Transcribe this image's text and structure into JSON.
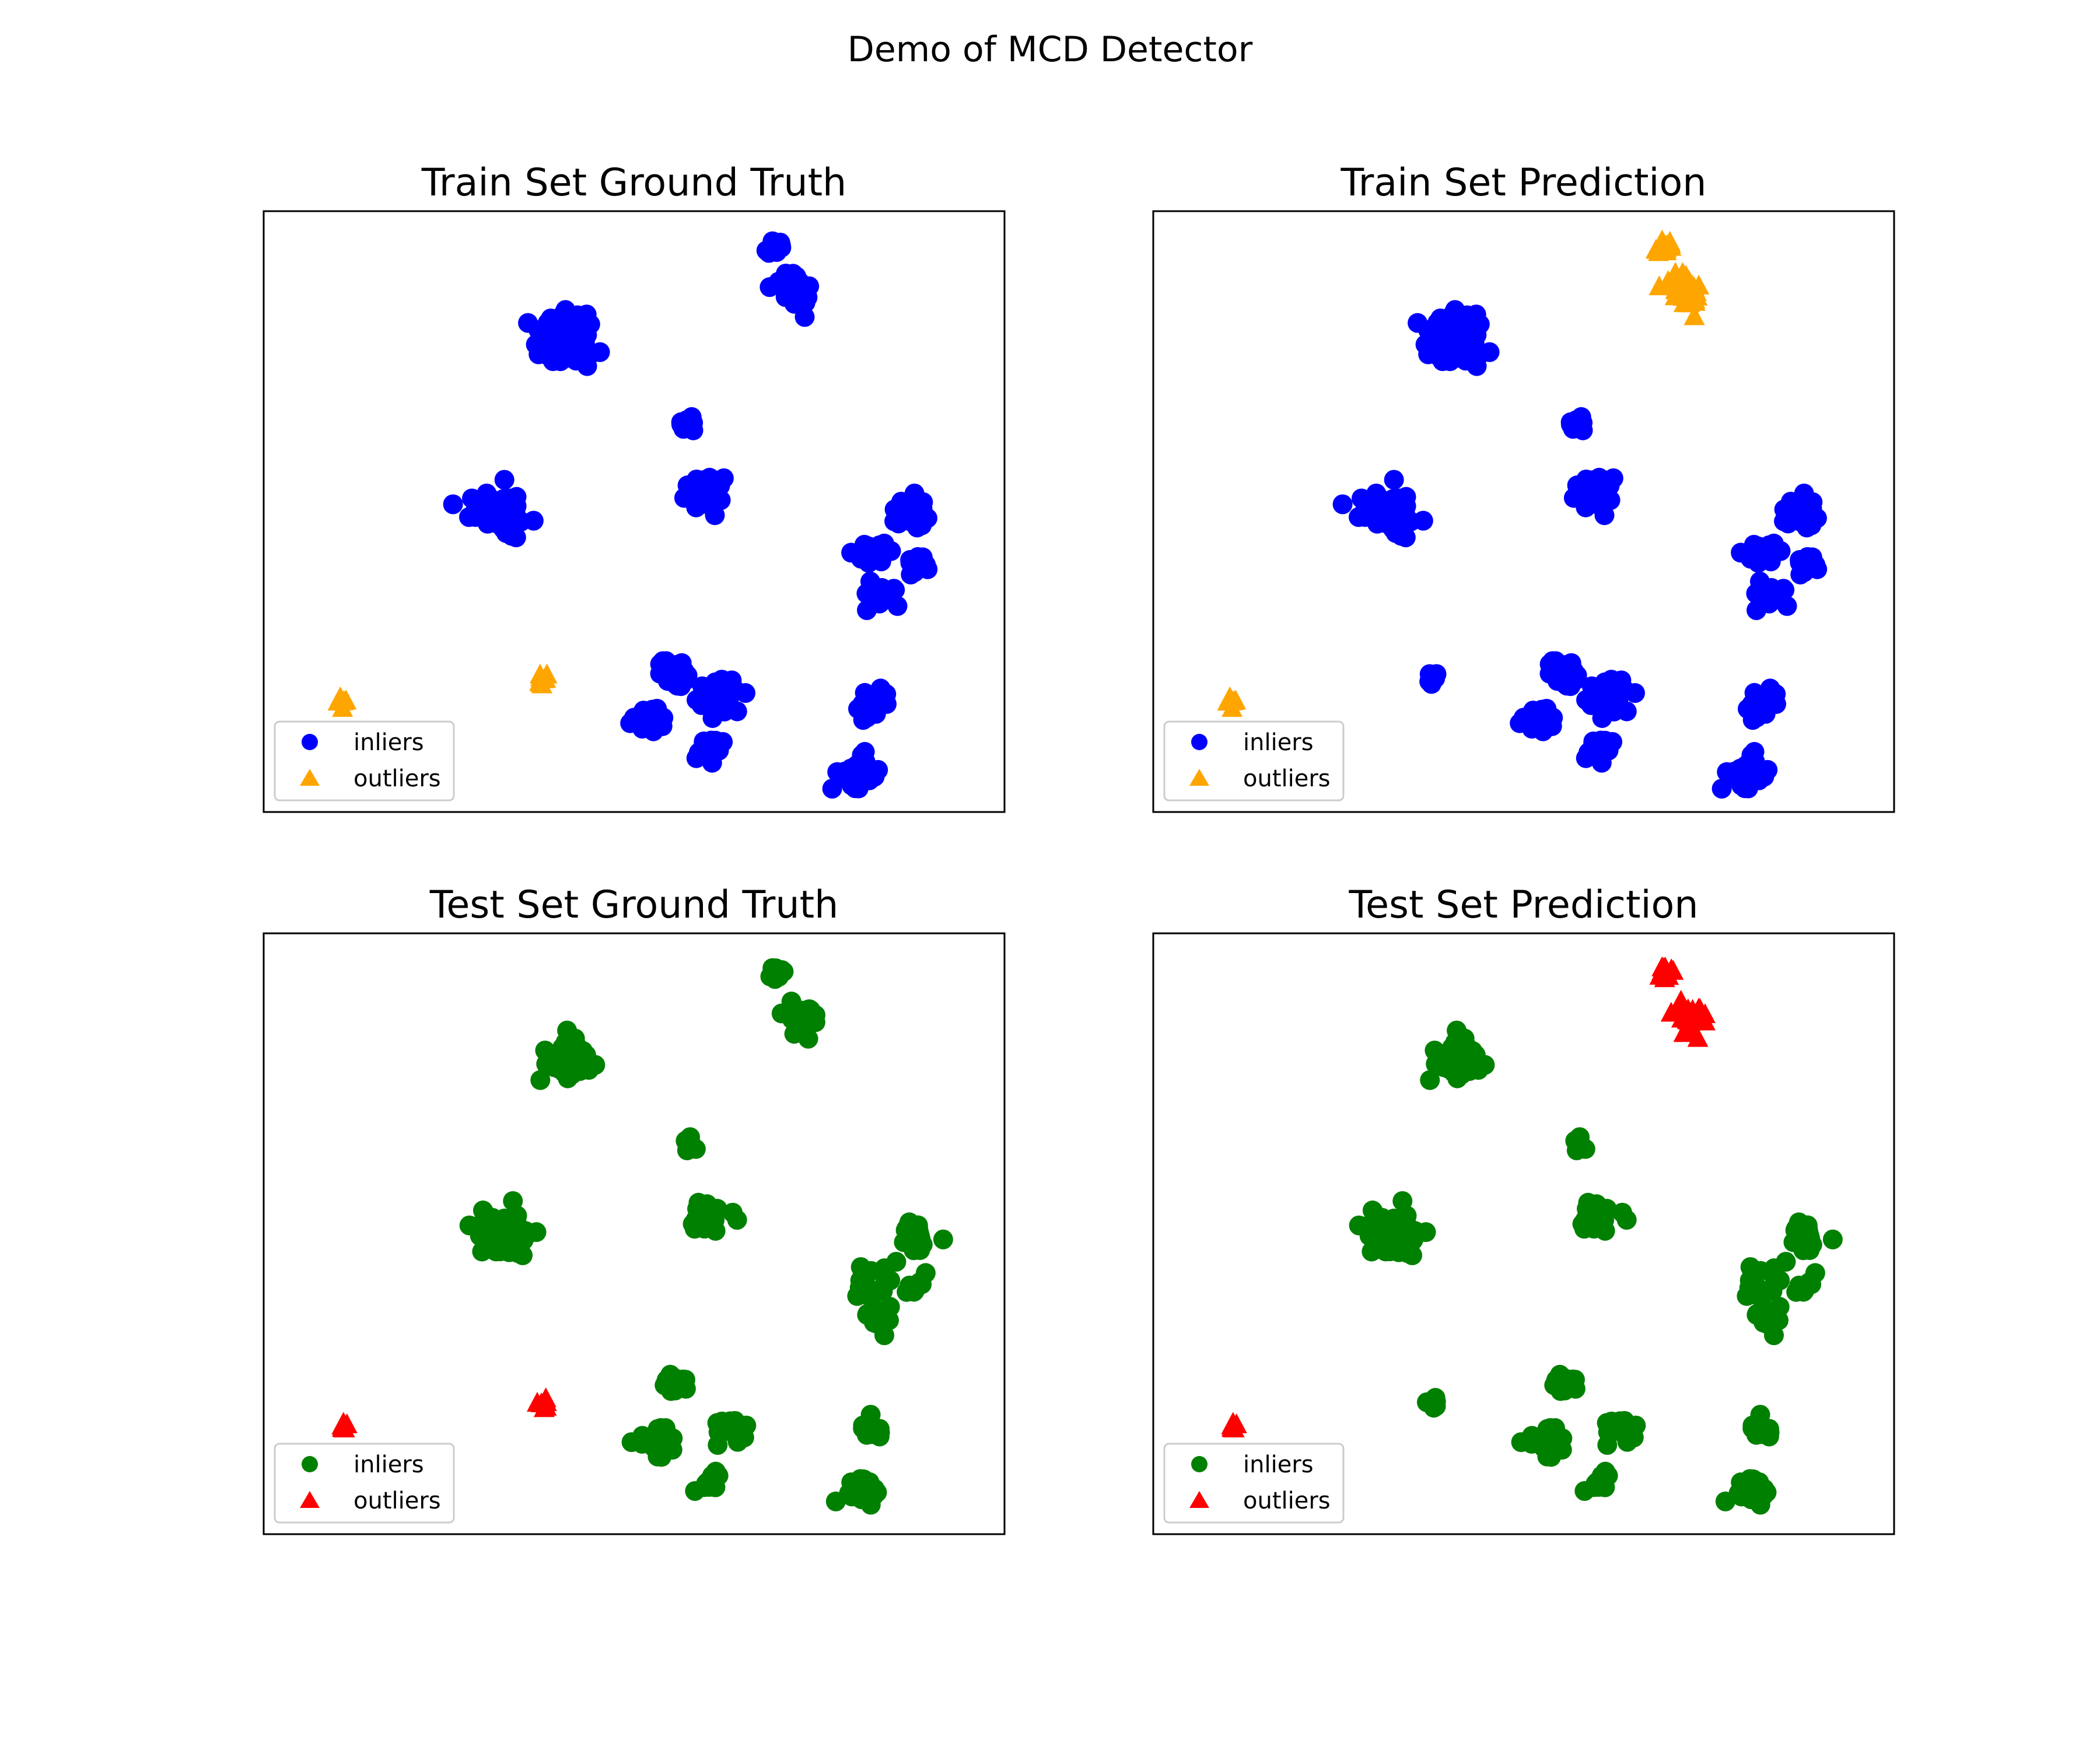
{
  "figure": {
    "title": "Demo of MCD Detector"
  },
  "colors": {
    "train_inlier": "#0000ff",
    "train_outlier": "#ffa500",
    "test_inlier": "#008000",
    "test_outlier": "#ff0000"
  },
  "chart_data": [
    {
      "type": "scatter",
      "title": "Train Set Ground Truth",
      "xlabel": "",
      "ylabel": "",
      "ticks_visible": false,
      "grid": false,
      "xlim": [
        0,
        100
      ],
      "ylim": [
        0,
        100
      ],
      "legend": {
        "position": "lower-left",
        "entries": [
          "inliers",
          "outliers"
        ]
      },
      "series": [
        {
          "name": "inliers",
          "marker": "circle",
          "color": "#0000ff",
          "clusters": [
            {
              "cx": 68.9,
              "cy": 94.0,
              "spread": 1.4,
              "n": 14,
              "seed": 11
            },
            {
              "cx": 72.1,
              "cy": 86.8,
              "spread": 2.6,
              "n": 40,
              "seed": 12
            },
            {
              "cx": 40.5,
              "cy": 79.2,
              "spread": 3.8,
              "n": 70,
              "seed": 13
            },
            {
              "cx": 57.5,
              "cy": 64.5,
              "spread": 1.3,
              "n": 12,
              "seed": 14
            },
            {
              "cx": 31.8,
              "cy": 50.2,
              "spread": 3.6,
              "n": 70,
              "seed": 15
            },
            {
              "cx": 59.8,
              "cy": 53.0,
              "spread": 2.6,
              "n": 35,
              "seed": 16
            },
            {
              "cx": 87.5,
              "cy": 49.5,
              "spread": 2.4,
              "n": 30,
              "seed": 17
            },
            {
              "cx": 81.8,
              "cy": 42.8,
              "spread": 2.0,
              "n": 26,
              "seed": 18
            },
            {
              "cx": 88.0,
              "cy": 41.5,
              "spread": 1.5,
              "n": 14,
              "seed": 19
            },
            {
              "cx": 83.0,
              "cy": 36.5,
              "spread": 2.2,
              "n": 24,
              "seed": 20
            },
            {
              "cx": 55.5,
              "cy": 23.0,
              "spread": 2.2,
              "n": 28,
              "seed": 21
            },
            {
              "cx": 51.5,
              "cy": 15.5,
              "spread": 2.0,
              "n": 22,
              "seed": 22
            },
            {
              "cx": 62.0,
              "cy": 19.0,
              "spread": 2.4,
              "n": 30,
              "seed": 23
            },
            {
              "cx": 60.0,
              "cy": 10.5,
              "spread": 1.8,
              "n": 18,
              "seed": 24
            },
            {
              "cx": 82.0,
              "cy": 17.5,
              "spread": 2.0,
              "n": 22,
              "seed": 25
            },
            {
              "cx": 80.5,
              "cy": 7.0,
              "spread": 2.8,
              "n": 35,
              "seed": 26
            }
          ]
        },
        {
          "name": "outliers",
          "marker": "triangle",
          "color": "#ffa500",
          "clusters": [
            {
              "cx": 10.5,
              "cy": 18.0,
              "spread": 0.8,
              "n": 6,
              "seed": 31
            },
            {
              "cx": 37.7,
              "cy": 21.8,
              "spread": 0.9,
              "n": 8,
              "seed": 32
            }
          ]
        }
      ]
    },
    {
      "type": "scatter",
      "title": "Train Set Prediction",
      "xlabel": "",
      "ylabel": "",
      "ticks_visible": false,
      "grid": false,
      "xlim": [
        0,
        100
      ],
      "ylim": [
        0,
        100
      ],
      "legend": {
        "position": "lower-left",
        "entries": [
          "inliers",
          "outliers"
        ]
      },
      "series": [
        {
          "name": "inliers",
          "marker": "circle",
          "color": "#0000ff",
          "clusters": [
            {
              "cx": 40.5,
              "cy": 79.2,
              "spread": 3.8,
              "n": 70,
              "seed": 13
            },
            {
              "cx": 57.5,
              "cy": 64.5,
              "spread": 1.3,
              "n": 12,
              "seed": 14
            },
            {
              "cx": 31.8,
              "cy": 50.2,
              "spread": 3.6,
              "n": 70,
              "seed": 15
            },
            {
              "cx": 59.8,
              "cy": 53.0,
              "spread": 2.6,
              "n": 35,
              "seed": 16
            },
            {
              "cx": 87.5,
              "cy": 49.5,
              "spread": 2.4,
              "n": 30,
              "seed": 17
            },
            {
              "cx": 81.8,
              "cy": 42.8,
              "spread": 2.0,
              "n": 26,
              "seed": 18
            },
            {
              "cx": 88.0,
              "cy": 41.5,
              "spread": 1.5,
              "n": 14,
              "seed": 19
            },
            {
              "cx": 83.0,
              "cy": 36.5,
              "spread": 2.2,
              "n": 24,
              "seed": 20
            },
            {
              "cx": 37.7,
              "cy": 22.0,
              "spread": 0.9,
              "n": 8,
              "seed": 32
            },
            {
              "cx": 55.5,
              "cy": 23.0,
              "spread": 2.2,
              "n": 28,
              "seed": 21
            },
            {
              "cx": 51.5,
              "cy": 15.5,
              "spread": 2.0,
              "n": 22,
              "seed": 22
            },
            {
              "cx": 62.0,
              "cy": 19.0,
              "spread": 2.4,
              "n": 30,
              "seed": 23
            },
            {
              "cx": 60.0,
              "cy": 10.5,
              "spread": 1.8,
              "n": 18,
              "seed": 24
            },
            {
              "cx": 82.0,
              "cy": 17.5,
              "spread": 2.0,
              "n": 22,
              "seed": 25
            },
            {
              "cx": 80.5,
              "cy": 7.0,
              "spread": 2.8,
              "n": 35,
              "seed": 26
            }
          ]
        },
        {
          "name": "outliers",
          "marker": "triangle",
          "color": "#ffa500",
          "clusters": [
            {
              "cx": 68.9,
              "cy": 94.0,
              "spread": 1.4,
              "n": 14,
              "seed": 11
            },
            {
              "cx": 72.1,
              "cy": 86.8,
              "spread": 2.6,
              "n": 40,
              "seed": 12
            },
            {
              "cx": 10.5,
              "cy": 18.0,
              "spread": 0.8,
              "n": 6,
              "seed": 31
            }
          ]
        }
      ]
    },
    {
      "type": "scatter",
      "title": "Test Set Ground Truth",
      "xlabel": "",
      "ylabel": "",
      "ticks_visible": false,
      "grid": false,
      "xlim": [
        0,
        100
      ],
      "ylim": [
        0,
        100
      ],
      "legend": {
        "position": "lower-left",
        "entries": [
          "inliers",
          "outliers"
        ]
      },
      "series": [
        {
          "name": "inliers",
          "marker": "circle",
          "color": "#008000",
          "clusters": [
            {
              "cx": 69.0,
              "cy": 93.5,
              "spread": 1.3,
              "n": 10,
              "seed": 41
            },
            {
              "cx": 72.0,
              "cy": 86.0,
              "spread": 2.4,
              "n": 26,
              "seed": 42
            },
            {
              "cx": 40.5,
              "cy": 79.2,
              "spread": 3.6,
              "n": 45,
              "seed": 43
            },
            {
              "cx": 57.5,
              "cy": 64.5,
              "spread": 1.2,
              "n": 8,
              "seed": 44
            },
            {
              "cx": 31.8,
              "cy": 50.2,
              "spread": 3.6,
              "n": 45,
              "seed": 45
            },
            {
              "cx": 60.0,
              "cy": 53.0,
              "spread": 2.4,
              "n": 20,
              "seed": 46
            },
            {
              "cx": 87.5,
              "cy": 49.5,
              "spread": 2.4,
              "n": 20,
              "seed": 47
            },
            {
              "cx": 81.8,
              "cy": 42.0,
              "spread": 2.2,
              "n": 20,
              "seed": 48
            },
            {
              "cx": 88.0,
              "cy": 41.5,
              "spread": 1.5,
              "n": 10,
              "seed": 49
            },
            {
              "cx": 83.0,
              "cy": 36.0,
              "spread": 2.2,
              "n": 18,
              "seed": 50
            },
            {
              "cx": 55.5,
              "cy": 25.0,
              "spread": 2.0,
              "n": 14,
              "seed": 51
            },
            {
              "cx": 53.0,
              "cy": 15.5,
              "spread": 2.4,
              "n": 22,
              "seed": 52
            },
            {
              "cx": 63.0,
              "cy": 18.0,
              "spread": 2.4,
              "n": 18,
              "seed": 53
            },
            {
              "cx": 60.0,
              "cy": 9.0,
              "spread": 1.8,
              "n": 12,
              "seed": 54
            },
            {
              "cx": 82.0,
              "cy": 17.5,
              "spread": 1.8,
              "n": 14,
              "seed": 55
            },
            {
              "cx": 80.5,
              "cy": 7.0,
              "spread": 2.6,
              "n": 22,
              "seed": 56
            }
          ]
        },
        {
          "name": "outliers",
          "marker": "triangle",
          "color": "#ff0000",
          "clusters": [
            {
              "cx": 10.5,
              "cy": 18.0,
              "spread": 0.8,
              "n": 6,
              "seed": 61
            },
            {
              "cx": 37.5,
              "cy": 21.8,
              "spread": 0.8,
              "n": 6,
              "seed": 62
            }
          ]
        }
      ]
    },
    {
      "type": "scatter",
      "title": "Test Set Prediction",
      "xlabel": "",
      "ylabel": "",
      "ticks_visible": false,
      "grid": false,
      "xlim": [
        0,
        100
      ],
      "ylim": [
        0,
        100
      ],
      "legend": {
        "position": "lower-left",
        "entries": [
          "inliers",
          "outliers"
        ]
      },
      "series": [
        {
          "name": "inliers",
          "marker": "circle",
          "color": "#008000",
          "clusters": [
            {
              "cx": 40.5,
              "cy": 79.2,
              "spread": 3.6,
              "n": 45,
              "seed": 43
            },
            {
              "cx": 57.5,
              "cy": 64.5,
              "spread": 1.2,
              "n": 8,
              "seed": 44
            },
            {
              "cx": 31.8,
              "cy": 50.2,
              "spread": 3.6,
              "n": 45,
              "seed": 45
            },
            {
              "cx": 60.0,
              "cy": 53.0,
              "spread": 2.4,
              "n": 20,
              "seed": 46
            },
            {
              "cx": 87.5,
              "cy": 49.5,
              "spread": 2.4,
              "n": 20,
              "seed": 47
            },
            {
              "cx": 81.8,
              "cy": 42.0,
              "spread": 2.2,
              "n": 20,
              "seed": 48
            },
            {
              "cx": 88.0,
              "cy": 41.5,
              "spread": 1.5,
              "n": 10,
              "seed": 49
            },
            {
              "cx": 83.0,
              "cy": 36.0,
              "spread": 2.2,
              "n": 18,
              "seed": 50
            },
            {
              "cx": 37.5,
              "cy": 22.0,
              "spread": 0.8,
              "n": 6,
              "seed": 62
            },
            {
              "cx": 55.5,
              "cy": 25.0,
              "spread": 2.0,
              "n": 14,
              "seed": 51
            },
            {
              "cx": 53.0,
              "cy": 15.5,
              "spread": 2.4,
              "n": 22,
              "seed": 52
            },
            {
              "cx": 63.0,
              "cy": 18.0,
              "spread": 2.4,
              "n": 18,
              "seed": 53
            },
            {
              "cx": 60.0,
              "cy": 9.0,
              "spread": 1.8,
              "n": 12,
              "seed": 54
            },
            {
              "cx": 82.0,
              "cy": 17.5,
              "spread": 1.8,
              "n": 14,
              "seed": 55
            },
            {
              "cx": 80.5,
              "cy": 7.0,
              "spread": 2.6,
              "n": 22,
              "seed": 56
            }
          ]
        },
        {
          "name": "outliers",
          "marker": "triangle",
          "color": "#ff0000",
          "clusters": [
            {
              "cx": 69.0,
              "cy": 93.5,
              "spread": 1.3,
              "n": 10,
              "seed": 41
            },
            {
              "cx": 72.0,
              "cy": 86.0,
              "spread": 2.4,
              "n": 26,
              "seed": 42
            },
            {
              "cx": 10.5,
              "cy": 18.0,
              "spread": 0.8,
              "n": 6,
              "seed": 61
            }
          ]
        }
      ]
    }
  ]
}
